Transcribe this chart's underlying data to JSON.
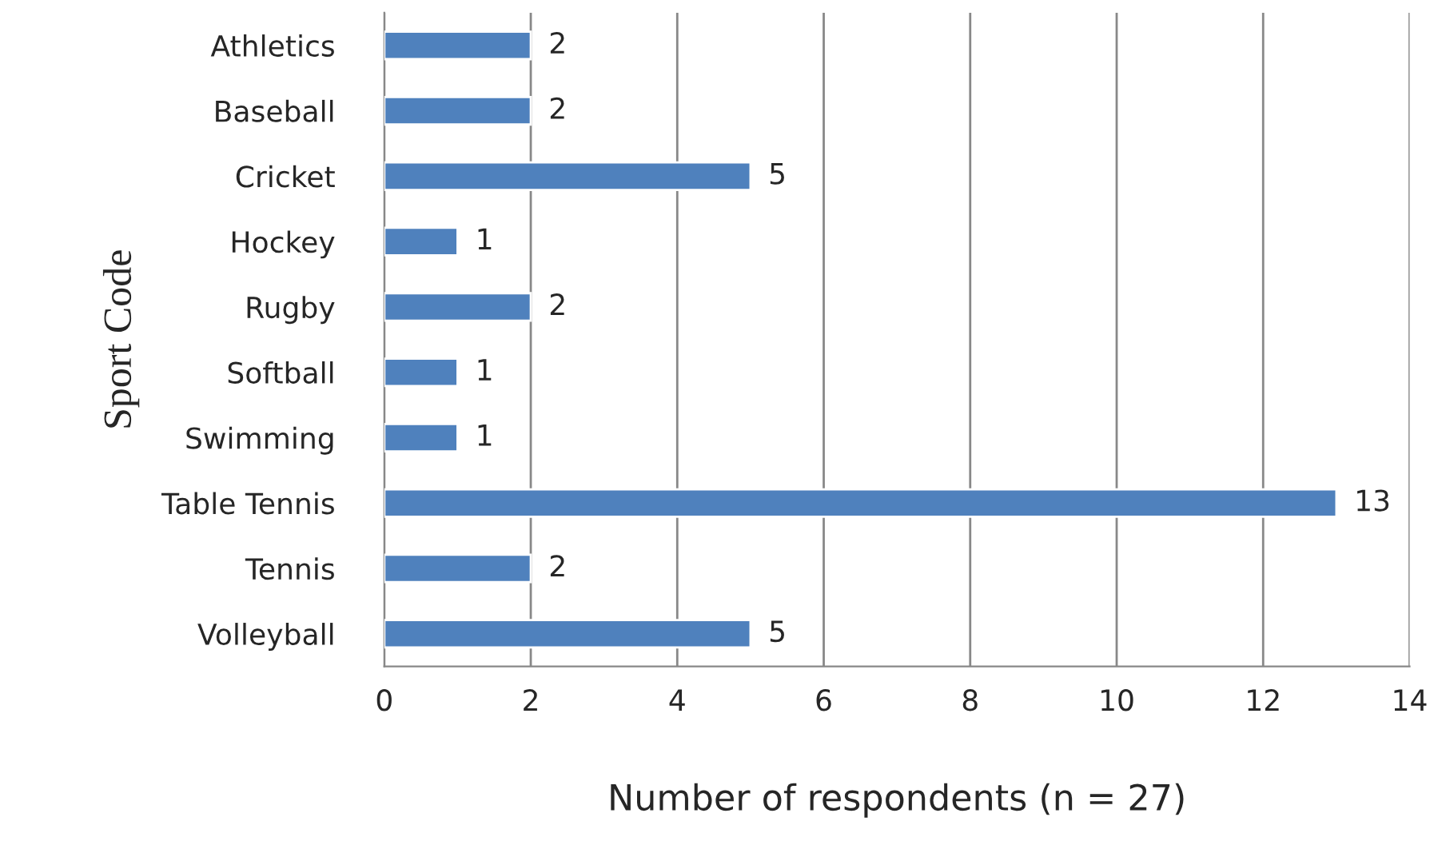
{
  "chart_data": {
    "type": "bar",
    "orientation": "horizontal",
    "categories": [
      "Athletics",
      "Baseball",
      "Cricket",
      "Hockey",
      "Rugby",
      "Softball",
      "Swimming",
      "Table Tennis",
      "Tennis",
      "Volleyball"
    ],
    "values": [
      2,
      2,
      5,
      1,
      2,
      1,
      1,
      13,
      2,
      5
    ],
    "color": "#4f81bd",
    "xlim": [
      0,
      14
    ],
    "xticks": [
      0,
      2,
      4,
      6,
      8,
      10,
      12,
      14
    ],
    "xlabel": "Number of respondents (n = 27)",
    "ylabel": "Sport Code",
    "grid": "x",
    "data_labels": true,
    "legend": false
  }
}
